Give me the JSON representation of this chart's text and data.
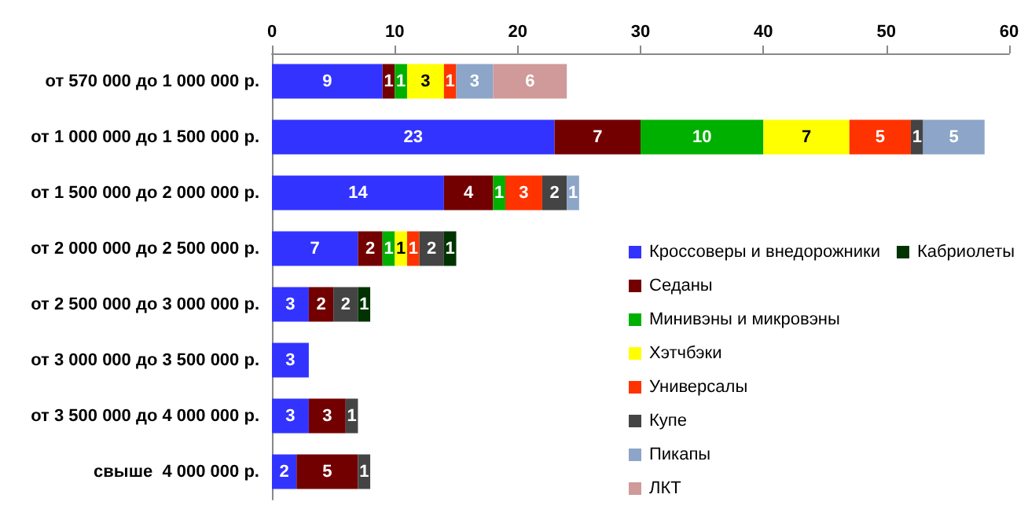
{
  "chart_data": {
    "type": "bar",
    "orientation": "horizontal",
    "stacked": true,
    "data_labels": true,
    "legend": "right",
    "grid": false,
    "categories": [
      "от 570 000 до 1 000 000 р.",
      "от 1 000 000 до 1 500 000 р.",
      "от 1 500 000 до 2 000 000 р.",
      "от 2 000 000 до 2 500 000 р.",
      "от 2 500 000 до 3 000 000 р.",
      "от 3 000 000 до 3 500 000 р.",
      "от 3 500 000 до 4 000 000 р.",
      "свыше  4 000 000 р."
    ],
    "xlim": [
      0,
      60
    ],
    "xticks": [
      0,
      10,
      20,
      30,
      40,
      50,
      60
    ],
    "series": [
      {
        "name": "Кроссоверы и внедорожники",
        "color": "#3333ff",
        "values": [
          9,
          23,
          14,
          7,
          3,
          3,
          3,
          2
        ]
      },
      {
        "name": "Седаны",
        "color": "#730000",
        "values": [
          1,
          7,
          4,
          2,
          2,
          null,
          3,
          5
        ]
      },
      {
        "name": "Минивэны и микровэны",
        "color": "#00b000",
        "values": [
          1,
          10,
          1,
          1,
          null,
          null,
          null,
          null
        ]
      },
      {
        "name": "Хэтчбэки",
        "color": "#ffff00",
        "values": [
          3,
          7,
          null,
          1,
          null,
          null,
          null,
          null
        ]
      },
      {
        "name": "Универсалы",
        "color": "#ff3300",
        "values": [
          1,
          5,
          3,
          1,
          null,
          null,
          null,
          null
        ]
      },
      {
        "name": "Купе",
        "color": "#444444",
        "values": [
          null,
          1,
          2,
          2,
          2,
          null,
          1,
          1
        ]
      },
      {
        "name": "Пикапы",
        "color": "#8ca5c8",
        "values": [
          3,
          5,
          1,
          null,
          null,
          null,
          null,
          null
        ]
      },
      {
        "name": "ЛКТ",
        "color": "#d09a9a",
        "values": [
          6,
          null,
          null,
          null,
          null,
          null,
          null,
          null
        ]
      },
      {
        "name": "Кабриолеты",
        "color": "#003300",
        "values": [
          null,
          null,
          null,
          1,
          1,
          null,
          null,
          null
        ]
      }
    ]
  }
}
